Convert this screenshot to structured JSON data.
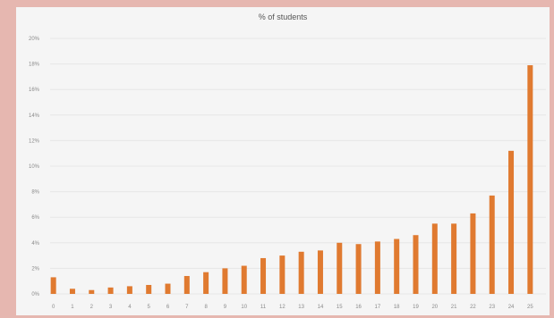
{
  "chart_data": {
    "type": "bar",
    "title": "% of students",
    "xlabel": "",
    "ylabel": "",
    "categories": [
      "0",
      "1",
      "2",
      "3",
      "4",
      "5",
      "6",
      "7",
      "8",
      "9",
      "10",
      "11",
      "12",
      "13",
      "14",
      "15",
      "16",
      "17",
      "18",
      "19",
      "20",
      "21",
      "22",
      "23",
      "24",
      "25"
    ],
    "series": [
      {
        "values": [
          1.3,
          0.4,
          0.3,
          0.5,
          0.6,
          0.7,
          0.8,
          1.4,
          1.7,
          2.0,
          2.2,
          2.8,
          3.0,
          3.3,
          3.4,
          4.0,
          3.9,
          4.1,
          4.3,
          4.6,
          5.5,
          5.5,
          6.3,
          7.7,
          11.2,
          17.9
        ]
      }
    ],
    "ylim": [
      0,
      20
    ],
    "yticks": [
      "0%",
      "2%",
      "4%",
      "6%",
      "8%",
      "10%",
      "12%",
      "14%",
      "16%",
      "18%",
      "20%"
    ],
    "grid": true,
    "legend": "none",
    "colors": {
      "bar": "#e07a30",
      "grid": "#e6e6e6",
      "background": "#f5f5f5",
      "page_border": "#e6b7b0"
    }
  }
}
